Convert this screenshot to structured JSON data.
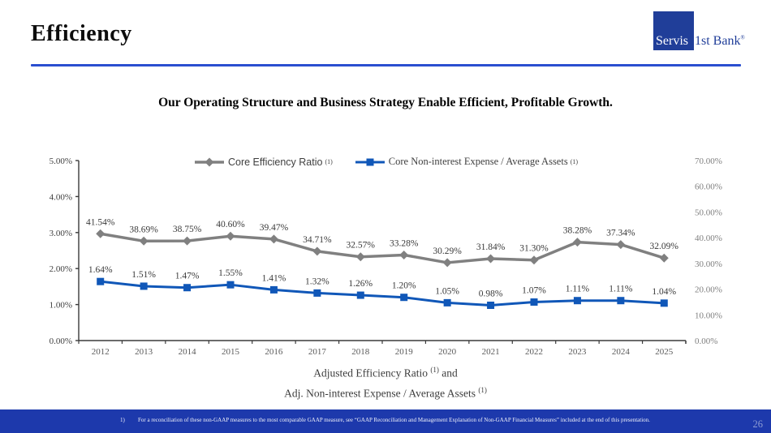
{
  "slide": {
    "title": "Efficiency",
    "subtitle": "Our Operating Structure and Business Strategy Enable Efficient, Profitable Growth.",
    "page_number": "26"
  },
  "logo": {
    "part1": "Servis",
    "part2": "1st Bank",
    "reg": "®"
  },
  "footnote": {
    "index": "1)",
    "text": "For a reconciliation of these non-GAAP measures to the most comparable GAAP measure, see “GAAP Reconciliation and Management Explanation of Non-GAAP Financial Measures” included at the end of this presentation."
  },
  "colors": {
    "gray_series": "#808080",
    "blue_series": "#1057b8",
    "header_rule": "#2a4fd0",
    "logo_blue": "#203e99",
    "footer_bg": "#1d39ac",
    "axis_line": "#3a3a3a",
    "left_tick_label": "#3f3f3f",
    "right_tick_label": "#7f7f7f",
    "x_tick_label": "#595959",
    "data_label": "#3a3a3a"
  },
  "chart_data": {
    "type": "line",
    "title": "",
    "categories": [
      "2012",
      "2013",
      "2014",
      "2015",
      "2016",
      "2017",
      "2018",
      "2019",
      "2020",
      "2021",
      "2022",
      "2023",
      "2024",
      "2025"
    ],
    "series": [
      {
        "name": "Core Efficiency Ratio",
        "sup": "(1)",
        "axis": "right",
        "color": "#808080",
        "marker": "diamond",
        "values": [
          41.54,
          38.69,
          38.75,
          40.6,
          39.47,
          34.71,
          32.57,
          33.28,
          30.29,
          31.84,
          31.3,
          38.28,
          37.34,
          32.09
        ]
      },
      {
        "name": "Core Non-interest Expense / Average Assets",
        "sup": "(1)",
        "axis": "left",
        "color": "#1057b8",
        "marker": "square",
        "values": [
          1.64,
          1.51,
          1.47,
          1.55,
          1.41,
          1.32,
          1.26,
          1.2,
          1.05,
          0.98,
          1.07,
          1.11,
          1.11,
          1.04
        ]
      }
    ],
    "left_axis": {
      "min": 0,
      "max": 5,
      "ticks": [
        "0.00%",
        "1.00%",
        "2.00%",
        "3.00%",
        "4.00%",
        "5.00%"
      ]
    },
    "right_axis": {
      "min": 0,
      "max": 70,
      "ticks": [
        "0.00%",
        "10.00%",
        "20.00%",
        "30.00%",
        "40.00%",
        "50.00%",
        "60.00%",
        "70.00%"
      ]
    },
    "xlabel_line1": "Adjusted Efficiency Ratio",
    "xlabel_line1_sup": "(1)",
    "xlabel_line1_tail": " and",
    "xlabel_line2": "Adj. Non-interest Expense / Average Assets",
    "xlabel_line2_sup": "(1)",
    "legend_position": "top-center",
    "grid": false,
    "data_labels": true
  }
}
